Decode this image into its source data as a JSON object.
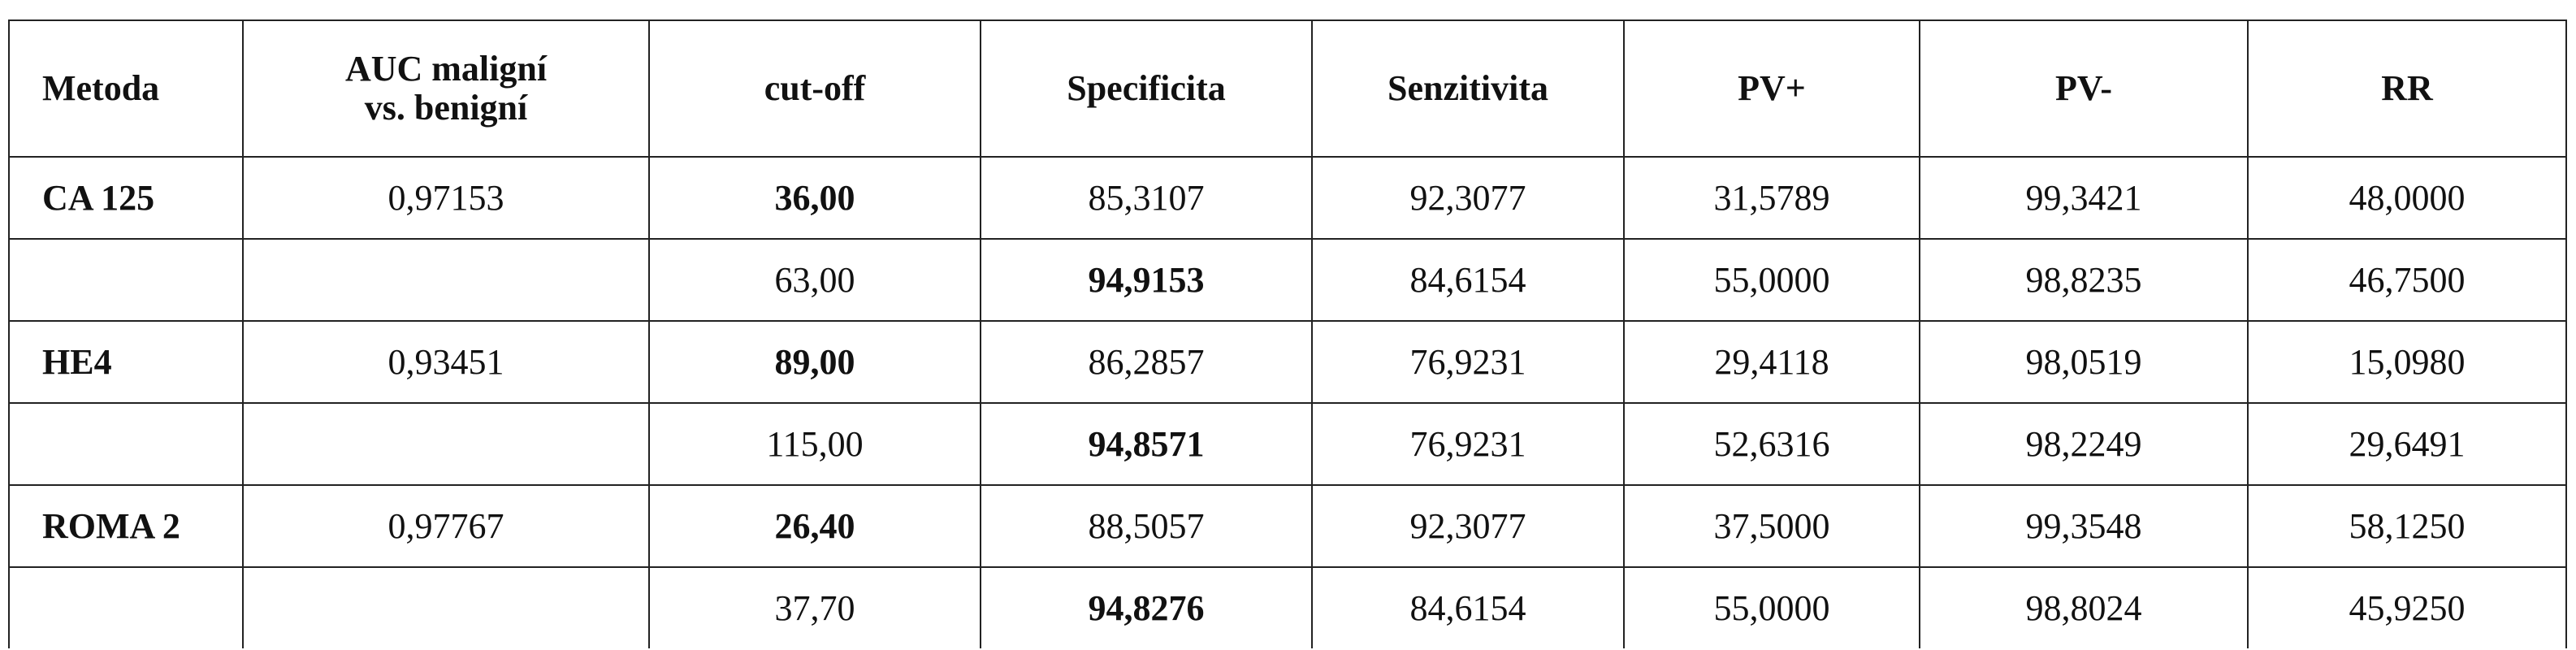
{
  "table": {
    "header": [
      "Metoda",
      "AUC maligní\nvs. benigní",
      "cut-off",
      "Specificita",
      "Senzitivita",
      "PV+",
      "PV-",
      "RR"
    ],
    "rows": [
      [
        "CA 125",
        "0,97153",
        "36,00",
        "85,3107",
        "92,3077",
        "31,5789",
        "99,3421",
        "48,0000"
      ],
      [
        null,
        null,
        "63,00",
        "94,9153",
        "84,6154",
        "55,0000",
        "98,8235",
        "46,7500"
      ],
      [
        "HE4",
        "0,93451",
        "89,00",
        "86,2857",
        "76,9231",
        "29,4118",
        "98,0519",
        "15,0980"
      ],
      [
        null,
        null,
        "115,00",
        "94,8571",
        "76,9231",
        "52,6316",
        "98,2249",
        "29,6491"
      ],
      [
        "ROMA 2",
        "0,97767",
        "26,40",
        "88,5057",
        "92,3077",
        "37,5000",
        "99,3548",
        "58,1250"
      ],
      [
        null,
        null,
        "37,70",
        "94,8276",
        "84,6154",
        "55,0000",
        "98,8024",
        "45,9250"
      ]
    ]
  }
}
